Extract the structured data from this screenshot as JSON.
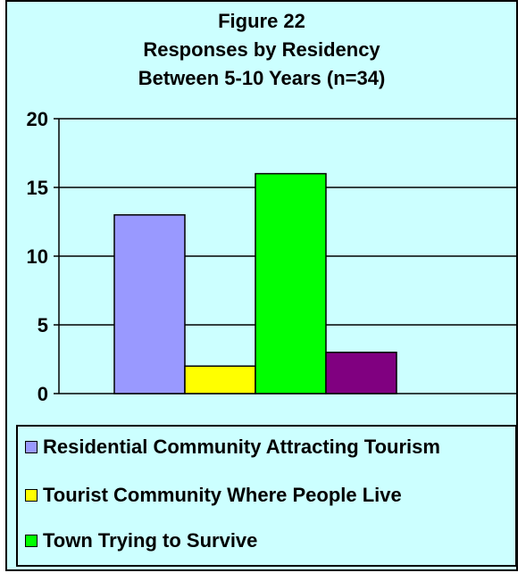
{
  "chart_data": {
    "type": "bar",
    "title_lines": [
      "Figure 22",
      "Responses by Residency",
      "Between 5-10 Years (n=34)"
    ],
    "xlabel": "",
    "ylabel": "",
    "ylim": [
      0,
      20
    ],
    "yticks": [
      "0",
      "5",
      "10",
      "15",
      "20"
    ],
    "ytick_values": [
      0,
      5,
      10,
      15,
      20
    ],
    "grid": true,
    "legend_position": "bottom",
    "series": [
      {
        "name": "Residential Community Attracting Tourism",
        "value": 13,
        "color": "#9999ff"
      },
      {
        "name": "Tourist Community Where People Live",
        "value": 2,
        "color": "#ffff00"
      },
      {
        "name": "Town Trying to Survive",
        "value": 16,
        "color": "#00ff00"
      },
      {
        "name": "",
        "value": 3,
        "color": "#800080"
      }
    ]
  },
  "colors": {
    "background": "#ccffff",
    "plot_background": "#ccffff",
    "border": "#000000"
  }
}
